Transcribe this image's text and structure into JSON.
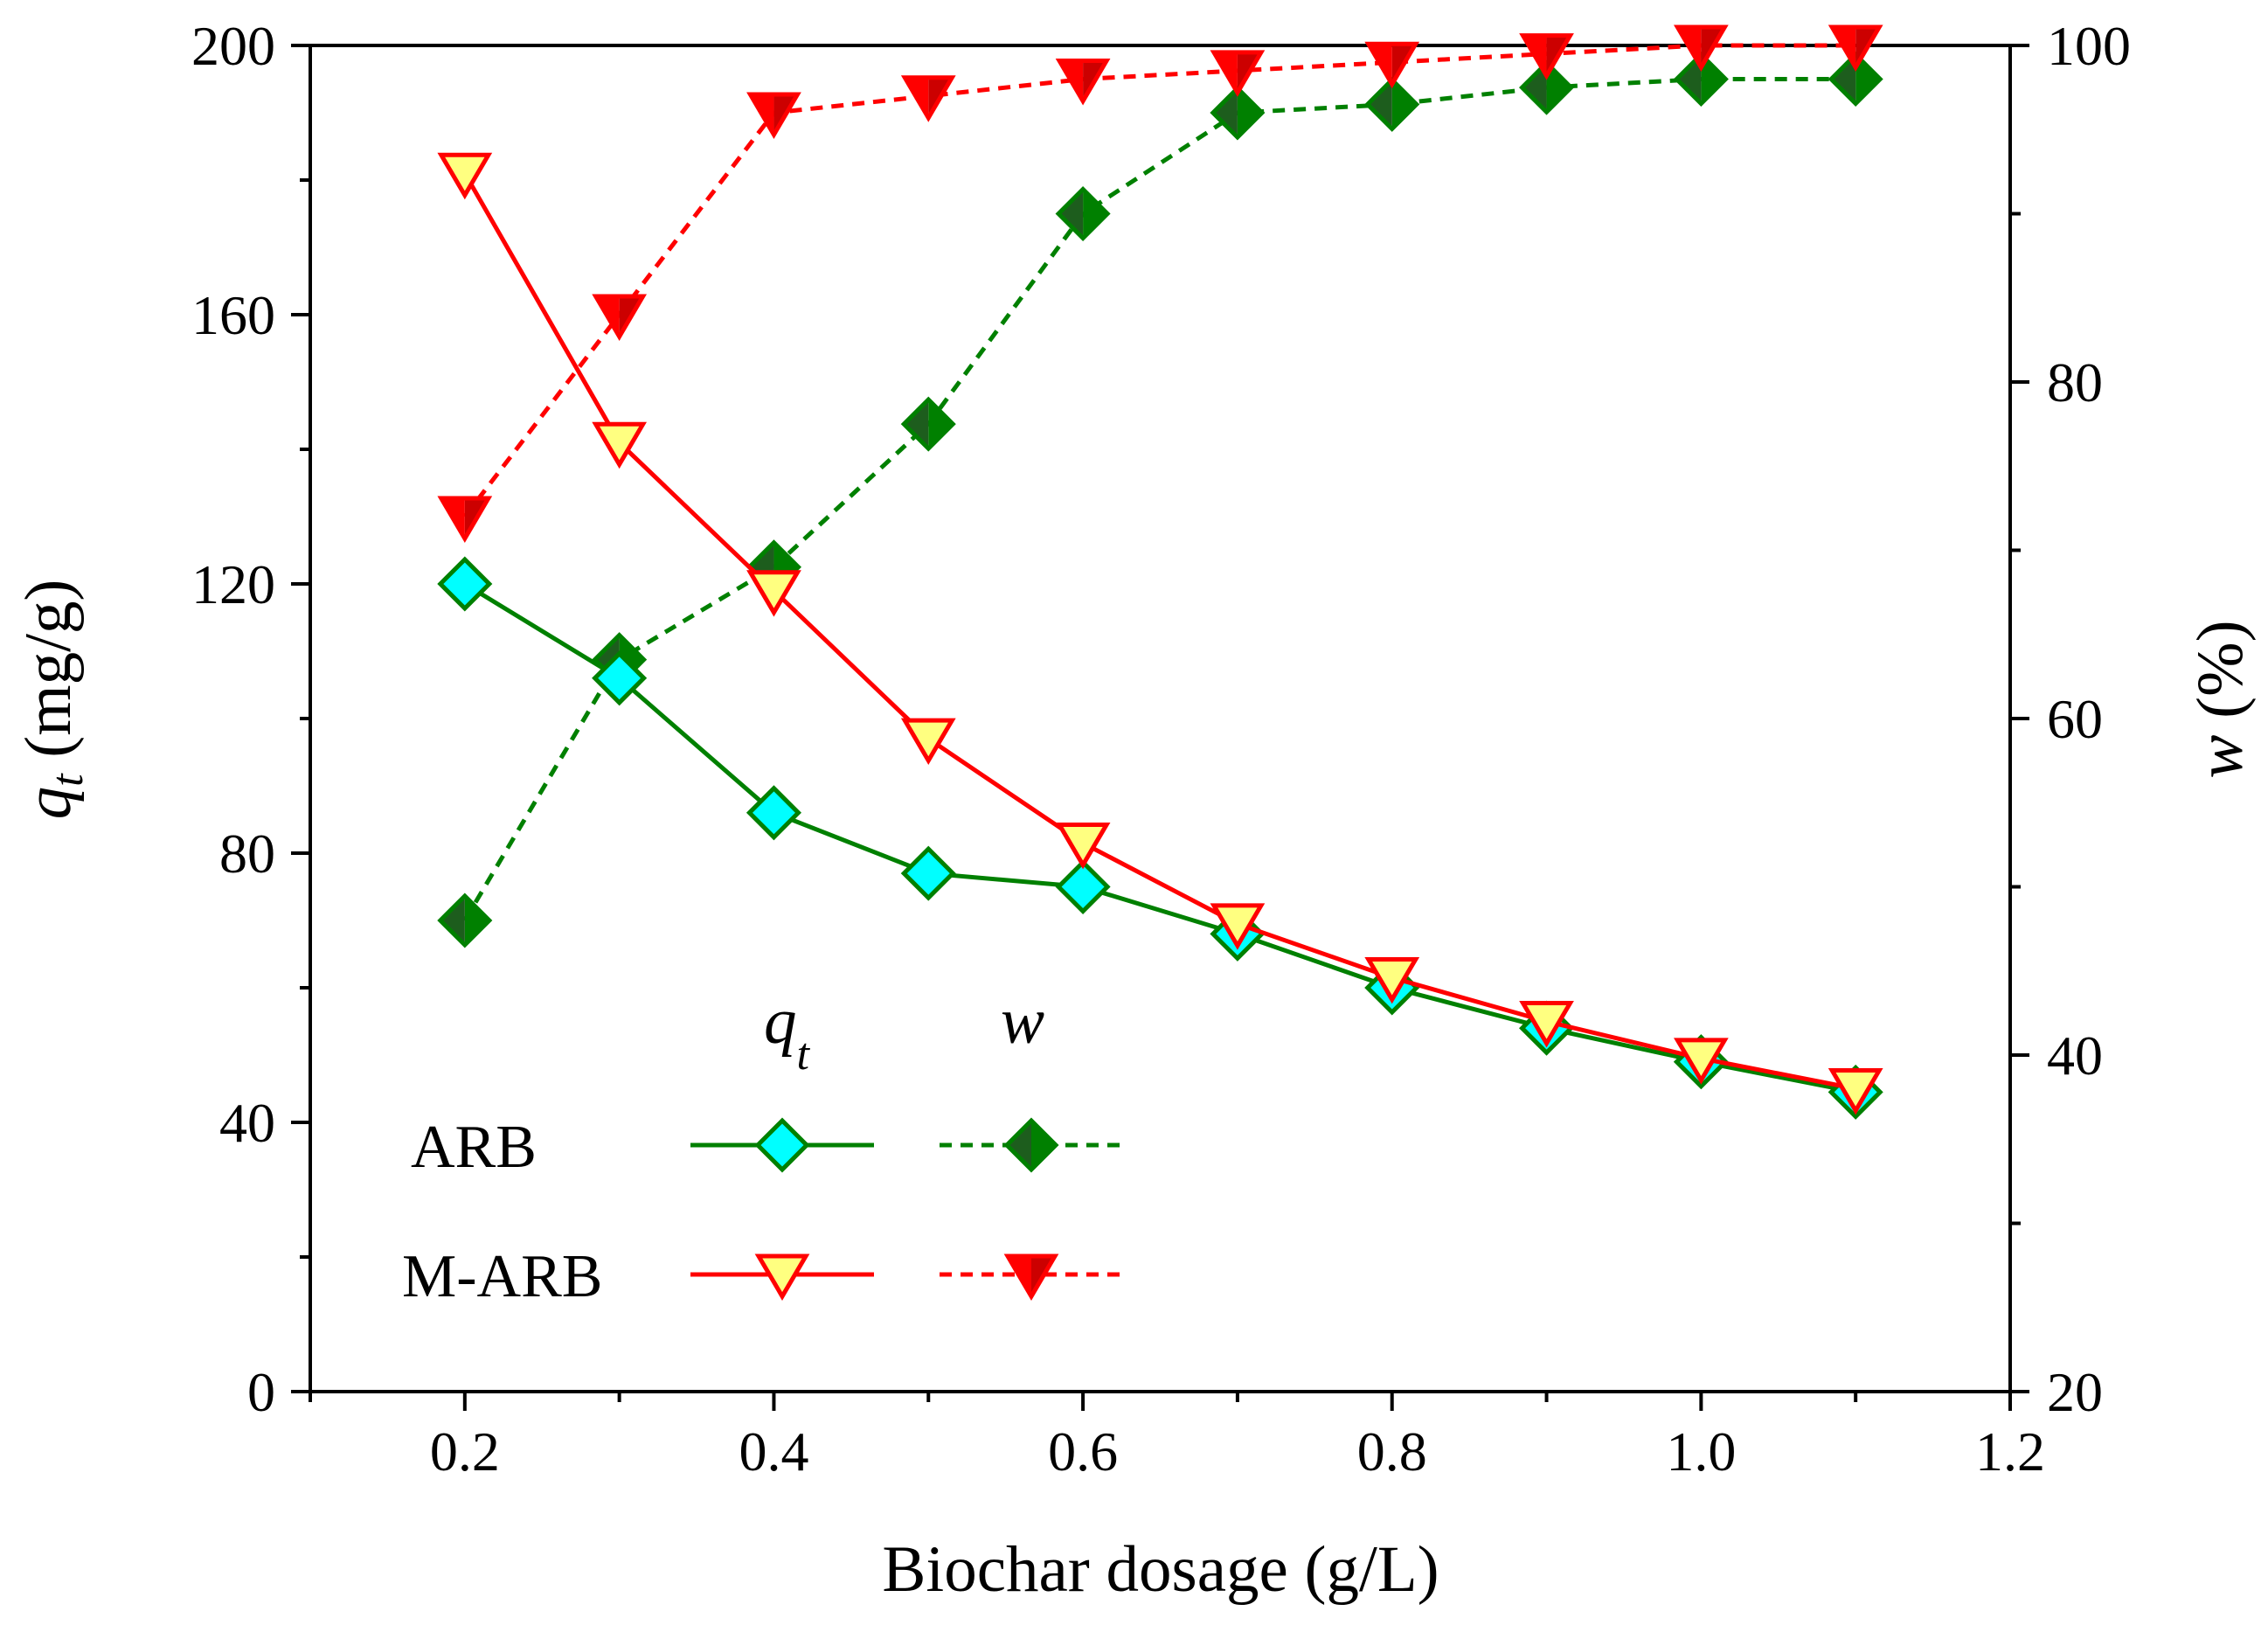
{
  "chart_data": {
    "type": "line",
    "title": "",
    "xlabel": "Biochar dosage (g/L)",
    "ylabel_left": {
      "symbol": "q",
      "subscript": "t",
      "unit": " (mg/g)"
    },
    "ylabel_right": {
      "symbol": "w",
      "unit": " (%)"
    },
    "xlim": [
      0.1,
      1.2
    ],
    "ylim_left": [
      0,
      200
    ],
    "ylim_right": [
      20,
      100
    ],
    "x_ticks": [
      0.2,
      0.4,
      0.6,
      0.8,
      1.0,
      1.2
    ],
    "x_tick_labels": [
      "0.2",
      "0.4",
      "0.6",
      "0.8",
      "1.0",
      "1.2"
    ],
    "y_left_ticks": [
      0,
      40,
      80,
      120,
      160,
      200
    ],
    "y_left_tick_labels": [
      "0",
      "40",
      "80",
      "120",
      "160",
      "200"
    ],
    "y_right_ticks": [
      20,
      40,
      60,
      80,
      100
    ],
    "y_right_tick_labels": [
      "20",
      "40",
      "60",
      "80",
      "100"
    ],
    "x": [
      0.2,
      0.3,
      0.4,
      0.5,
      0.6,
      0.7,
      0.8,
      0.9,
      1.0,
      1.1
    ],
    "series": [
      {
        "name": "ARB q_t",
        "material": "ARB",
        "metric": "qt",
        "axis": "left",
        "linestyle": "solid",
        "marker": "diamond",
        "color": "#008000",
        "marker_fill": "#00FFFF",
        "values": [
          120,
          106,
          86,
          77,
          75,
          68,
          60,
          54,
          49,
          44.5
        ]
      },
      {
        "name": "M-ARB q_t",
        "material": "M-ARB",
        "metric": "qt",
        "axis": "left",
        "linestyle": "solid",
        "marker": "triangle-down",
        "color": "#FF0000",
        "marker_fill": "#FFFF80",
        "values": [
          181,
          141,
          119,
          97,
          81.5,
          69.5,
          61.5,
          55,
          49.5,
          45
        ]
      },
      {
        "name": "ARB w",
        "material": "ARB",
        "metric": "w",
        "axis": "right",
        "linestyle": "dashed",
        "marker": "diamond-half",
        "color": "#008000",
        "marker_fill": "#008000",
        "values": [
          48,
          63.5,
          69,
          77.5,
          90,
          96,
          96.5,
          97.5,
          98,
          98
        ]
      },
      {
        "name": "M-ARB w",
        "material": "M-ARB",
        "metric": "w",
        "axis": "right",
        "linestyle": "dashed",
        "marker": "triangle-down-half",
        "color": "#FF0000",
        "marker_fill": "#FF0000",
        "values": [
          72,
          84,
          96,
          97,
          98,
          98.5,
          99,
          99.5,
          100,
          100
        ]
      }
    ],
    "legend": {
      "position": "bottom-center",
      "column_headers": [
        {
          "symbol": "q",
          "subscript": "t"
        },
        {
          "symbol": "w",
          "subscript": ""
        }
      ],
      "rows": [
        "ARB",
        "M-ARB"
      ]
    }
  }
}
